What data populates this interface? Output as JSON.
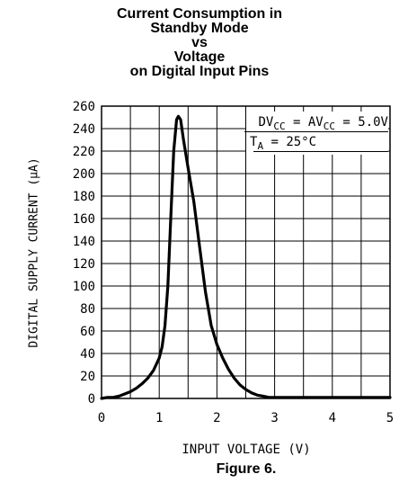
{
  "chart_data": {
    "type": "line",
    "title_lines": [
      "Current Consumption in",
      "Standby Mode",
      "vs",
      "Voltage",
      "on Digital Input Pins"
    ],
    "xlabel": "INPUT VOLTAGE (V)",
    "ylabel": "DIGITAL SUPPLY CURRENT (μA)",
    "caption": "Figure 6.",
    "xlim": [
      0,
      5
    ],
    "ylim": [
      0,
      260
    ],
    "xticks": [
      0,
      1,
      2,
      3,
      4,
      5
    ],
    "yticks": [
      0,
      20,
      40,
      60,
      80,
      100,
      120,
      140,
      160,
      180,
      200,
      220,
      240,
      260
    ],
    "grid": true,
    "annotation": {
      "line1": {
        "a": "DV",
        "a_sub": "CC",
        "mid": " = AV",
        "b_sub": "CC",
        "end": " = 5.0V"
      },
      "line2": {
        "a": "T",
        "a_sub": "A",
        "end": " = 25°C"
      }
    },
    "series": [
      {
        "x": [
          0.0,
          0.1,
          0.2,
          0.3,
          0.4,
          0.5,
          0.6,
          0.7,
          0.8,
          0.9,
          1.0,
          1.05,
          1.1,
          1.15,
          1.2,
          1.25,
          1.3,
          1.33,
          1.37,
          1.42,
          1.5,
          1.6,
          1.7,
          1.8,
          1.9,
          2.0,
          2.1,
          2.2,
          2.3,
          2.4,
          2.5,
          2.6,
          2.7,
          2.8,
          2.9,
          3.0,
          3.2,
          3.5,
          4.0,
          4.5,
          5.0
        ],
        "y": [
          0,
          1,
          1,
          2,
          4,
          6,
          9,
          13,
          18,
          25,
          36,
          46,
          65,
          100,
          160,
          220,
          248,
          251,
          248,
          230,
          205,
          175,
          135,
          95,
          65,
          48,
          36,
          26,
          18,
          12,
          8,
          5,
          3,
          2,
          1,
          1,
          1,
          1,
          1,
          1,
          1
        ]
      }
    ]
  }
}
